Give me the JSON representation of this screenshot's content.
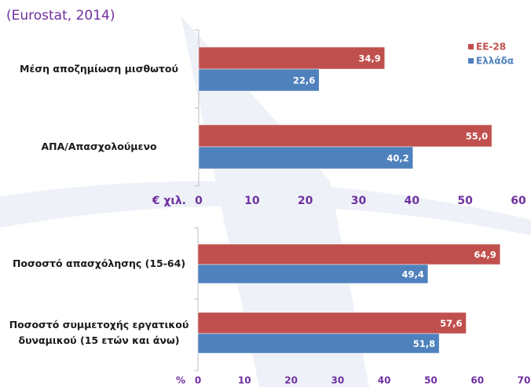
{
  "source": "(Eurostat, 2014)",
  "chart_data": [
    {
      "type": "hbar",
      "x_label": "€ χιλ.",
      "categories": [
        "Μέση αποζημίωση μισθωτού",
        "ΑΠΑ/Απασχολούμενο"
      ],
      "series": [
        {
          "name": "ΕΕ-28",
          "color": "#c0504d",
          "values": [
            34.9,
            55.0
          ],
          "value_labels": [
            "34,9",
            "55,0"
          ]
        },
        {
          "name": "Ελλάδα",
          "color": "#4f81bd",
          "values": [
            22.6,
            40.2
          ],
          "value_labels": [
            "22,6",
            "40,2"
          ]
        }
      ],
      "xlim": [
        0,
        60
      ],
      "xticks": [
        0,
        10,
        20,
        30,
        40,
        50,
        60
      ],
      "legend": "top-right"
    },
    {
      "type": "hbar",
      "x_label": "%",
      "categories": [
        "Ποσοστό απασχόλησης (15-64)",
        "Ποσοστό συμμετοχής εργατικού δυναμικού (15 ετών και άνω)"
      ],
      "series": [
        {
          "color": "#c0504d",
          "values": [
            64.9,
            57.6
          ],
          "value_labels": [
            "64,9",
            "57,6"
          ]
        },
        {
          "color": "#4f81bd",
          "values": [
            49.4,
            51.8
          ],
          "value_labels": [
            "49,4",
            "51,8"
          ]
        }
      ],
      "xlim": [
        0,
        70
      ],
      "xticks": [
        0,
        10,
        20,
        30,
        40,
        50,
        60,
        70
      ]
    }
  ]
}
